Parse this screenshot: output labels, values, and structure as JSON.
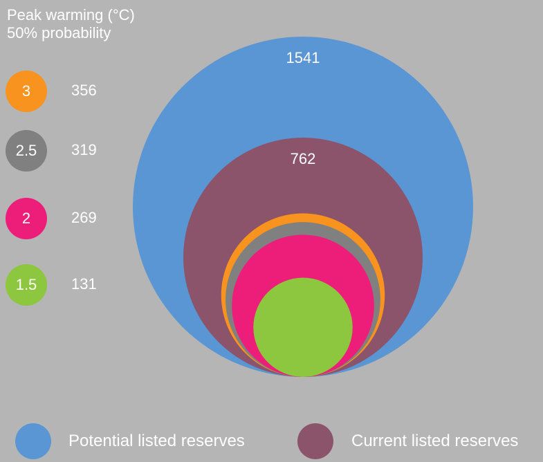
{
  "chart_data": {
    "type": "nested-bubble",
    "title_lines": [
      "Peak warming (°C)",
      "50% probability"
    ],
    "series": [
      {
        "name": "Potential listed reserves",
        "value": 1541,
        "color": "#5a96d3"
      },
      {
        "name": "Current listed reserves",
        "value": 762,
        "color": "#8b546b"
      },
      {
        "name": "3",
        "value": 356,
        "color": "#f7931e"
      },
      {
        "name": "2.5",
        "value": 319,
        "color": "#808080"
      },
      {
        "name": "2",
        "value": 269,
        "color": "#ed1e79"
      },
      {
        "name": "1.5",
        "value": 131,
        "color": "#8dc63f"
      }
    ]
  },
  "side_legend": [
    {
      "label": "3",
      "value": "356",
      "color": "#f7931e"
    },
    {
      "label": "2.5",
      "value": "319",
      "color": "#808080"
    },
    {
      "label": "2",
      "value": "269",
      "color": "#ed1e79"
    },
    {
      "label": "1.5",
      "value": "131",
      "color": "#8dc63f"
    }
  ],
  "bottom_legend": [
    {
      "label": "Potential listed reserves",
      "color": "#5a96d3"
    },
    {
      "label": "Current listed reserves",
      "color": "#8b546b"
    }
  ]
}
